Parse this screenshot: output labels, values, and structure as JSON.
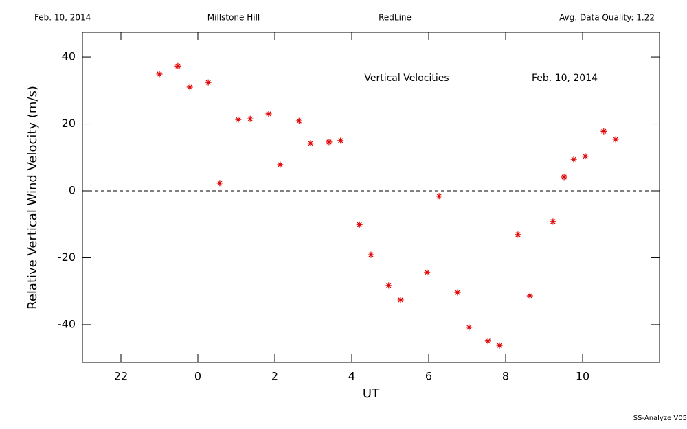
{
  "chart_data": {
    "type": "scatter",
    "header": [
      "Feb. 10, 2014",
      "Millstone Hill",
      "RedLine",
      "Avg. Data Quality: 1.22"
    ],
    "annotations": [
      "Vertical Velocities",
      "Feb. 10, 2014"
    ],
    "ylabel": "Relative Vertical Wind Velocity (m/s)",
    "xlabel": "UT",
    "footer": "SS-Analyze V05",
    "color": "#e00000",
    "x": [
      -1.0,
      -0.52,
      -0.21,
      0.27,
      0.57,
      1.05,
      1.36,
      1.84,
      2.14,
      2.63,
      2.93,
      3.41,
      3.71,
      4.2,
      4.5,
      4.96,
      5.27,
      5.96,
      6.27,
      6.75,
      7.05,
      7.54,
      7.84,
      8.32,
      8.63,
      9.23,
      9.52,
      9.77,
      10.07,
      10.55,
      10.86
    ],
    "values": [
      34.9,
      37.3,
      31.0,
      32.4,
      2.3,
      21.3,
      21.5,
      23.0,
      7.8,
      20.9,
      14.2,
      14.6,
      15.0,
      -10.1,
      -19.1,
      -28.3,
      -32.6,
      -24.4,
      -1.6,
      -30.4,
      -40.8,
      -44.9,
      -46.2,
      -13.1,
      -31.4,
      -9.2,
      4.1,
      9.4,
      10.3,
      17.8,
      15.4
    ],
    "xlim": [
      -3,
      12
    ],
    "xticks": [
      {
        "value": -2,
        "label": "22"
      },
      0,
      2,
      4,
      6,
      8,
      10
    ],
    "ylim": [
      -51.3,
      47.4
    ],
    "yticks": [
      -40,
      -20,
      0,
      20,
      40
    ]
  }
}
